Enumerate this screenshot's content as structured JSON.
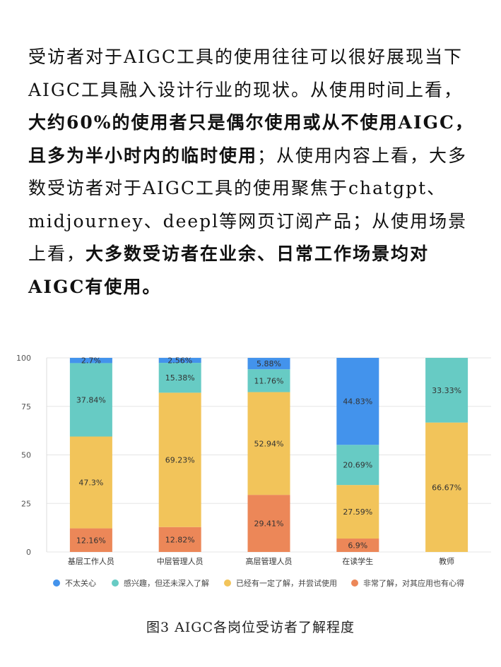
{
  "paragraph": {
    "s1": "受访者对于AIGC工具的使用往往可以很好展现当下AIGC工具融入设计行业的现状。从使用时间上看，",
    "s2": "大约60%的使用者只是偶尔使用或从不使用AIGC，且多为半小时内的临时使用",
    "s3": "；从使用内容上看，大多数受访者对于AIGC工具的使用聚焦于chatgpt、midjourney、deepl等网页订阅产品；从使用场景上看，",
    "s4": "大多数受访者在业余、日常工作场景均对AIGC有使用。"
  },
  "caption": "图3 AIGC各岗位受访者了解程度",
  "colors": {
    "not_care": "#4393ec",
    "interested": "#67cbc4",
    "tried": "#f2c45a",
    "deep": "#ec8758",
    "grid": "#e5e5e5",
    "axis_text": "#555555"
  },
  "chart_data": {
    "type": "bar",
    "stacked": true,
    "categories": [
      "基层工作人员",
      "中层管理人员",
      "高层管理人员",
      "在读学生",
      "教师"
    ],
    "series": [
      {
        "name": "非常了解，对其应用也有心得",
        "color_key": "deep",
        "values": [
          12.16,
          12.82,
          29.41,
          6.9,
          0
        ],
        "labels": [
          "12.16%",
          "12.82%",
          "29.41%",
          "6.9%",
          ""
        ]
      },
      {
        "name": "已经有一定了解，并尝试使用",
        "color_key": "tried",
        "values": [
          47.3,
          69.23,
          52.94,
          27.59,
          66.67
        ],
        "labels": [
          "47.3%",
          "69.23%",
          "52.94%",
          "27.59%",
          "66.67%"
        ]
      },
      {
        "name": "感兴趣，但还未深入了解",
        "color_key": "interested",
        "values": [
          37.84,
          15.38,
          11.76,
          20.69,
          33.33
        ],
        "labels": [
          "37.84%",
          "15.38%",
          "11.76%",
          "20.69%",
          "33.33%"
        ]
      },
      {
        "name": "不太关心",
        "color_key": "not_care",
        "values": [
          2.7,
          2.56,
          5.88,
          44.83,
          0
        ],
        "labels": [
          "2.7%",
          "2.56%",
          "5.88%",
          "44.83%",
          ""
        ]
      }
    ],
    "legend_order": [
      "不太关心",
      "感兴趣，但还未深入了解",
      "已经有一定了解，并尝试使用",
      "非常了解，对其应用也有心得"
    ],
    "yticks": [
      "0",
      "25",
      "50",
      "75",
      "100"
    ],
    "ylim": [
      0,
      100
    ],
    "grid": true,
    "legend_position": "bottom"
  }
}
